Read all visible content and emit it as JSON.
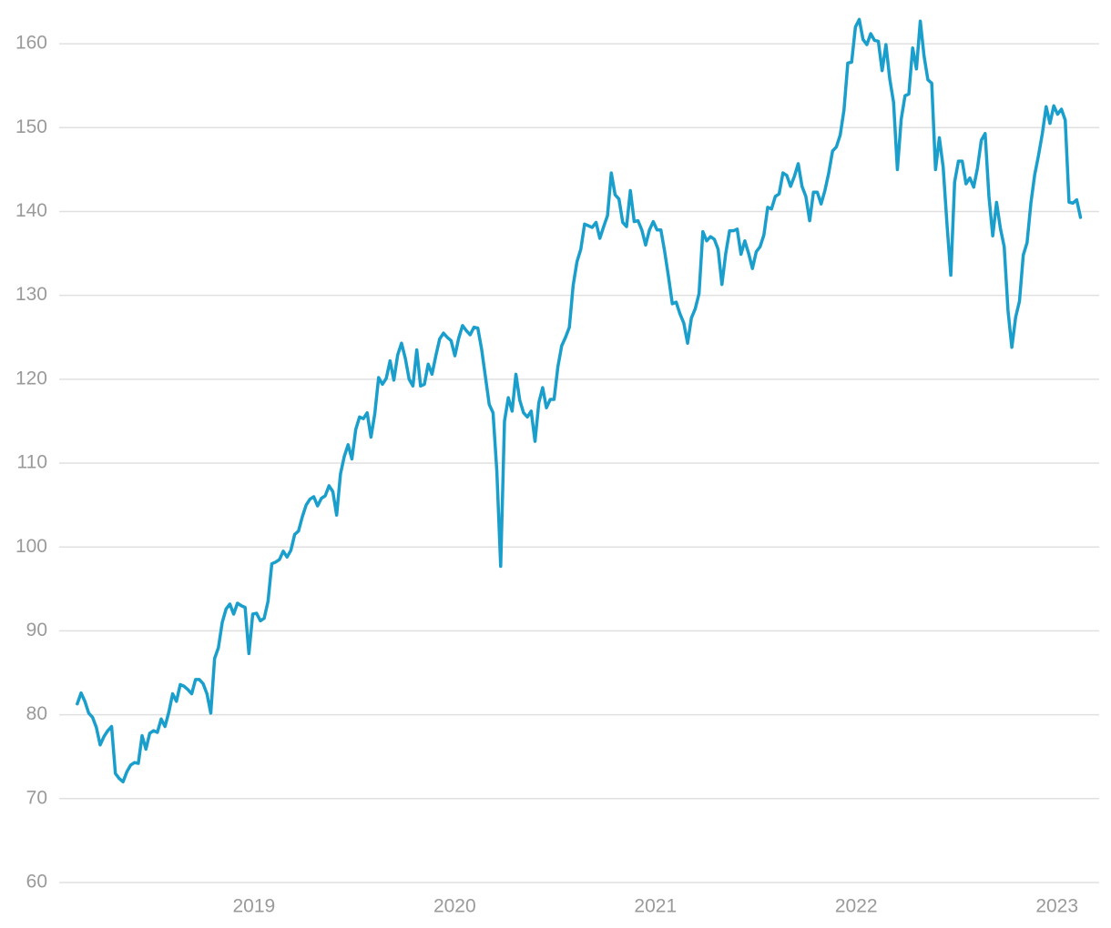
{
  "chart_data": {
    "type": "line",
    "color": "#1a9fcc",
    "grid": true,
    "xlim": [
      2018.03,
      2023.21
    ],
    "xticks": [
      2019,
      2020,
      2021,
      2022,
      2023
    ],
    "ylim": [
      60,
      165
    ],
    "yticks": [
      60,
      70,
      80,
      90,
      100,
      110,
      120,
      130,
      140,
      150,
      160
    ],
    "x": [
      2018.12,
      2018.139,
      2018.158,
      2018.177,
      2018.196,
      2018.215,
      2018.234,
      2018.253,
      2018.272,
      2018.291,
      2018.31,
      2018.329,
      2018.348,
      2018.367,
      2018.386,
      2018.405,
      2018.424,
      2018.443,
      2018.462,
      2018.481,
      2018.5,
      2018.519,
      2018.538,
      2018.557,
      2018.576,
      2018.595,
      2018.614,
      2018.633,
      2018.652,
      2018.671,
      2018.69,
      2018.709,
      2018.728,
      2018.747,
      2018.766,
      2018.785,
      2018.804,
      2018.823,
      2018.842,
      2018.861,
      2018.88,
      2018.899,
      2018.918,
      2018.937,
      2018.956,
      2018.975,
      2018.994,
      2019.013,
      2019.032,
      2019.051,
      2019.07,
      2019.089,
      2019.108,
      2019.127,
      2019.146,
      2019.165,
      2019.184,
      2019.203,
      2019.222,
      2019.241,
      2019.26,
      2019.279,
      2019.298,
      2019.317,
      2019.336,
      2019.355,
      2019.374,
      2019.393,
      2019.412,
      2019.431,
      2019.45,
      2019.469,
      2019.488,
      2019.507,
      2019.526,
      2019.545,
      2019.564,
      2019.583,
      2019.602,
      2019.621,
      2019.64,
      2019.659,
      2019.678,
      2019.697,
      2019.716,
      2019.735,
      2019.754,
      2019.773,
      2019.792,
      2019.811,
      2019.83,
      2019.849,
      2019.868,
      2019.887,
      2019.906,
      2019.925,
      2019.944,
      2019.963,
      2019.982,
      2020.001,
      2020.02,
      2020.039,
      2020.058,
      2020.077,
      2020.096,
      2020.115,
      2020.134,
      2020.153,
      2020.172,
      2020.191,
      2020.21,
      2020.229,
      2020.248,
      2020.267,
      2020.286,
      2020.305,
      2020.324,
      2020.343,
      2020.362,
      2020.381,
      2020.4,
      2020.419,
      2020.438,
      2020.457,
      2020.476,
      2020.495,
      2020.514,
      2020.533,
      2020.552,
      2020.571,
      2020.59,
      2020.609,
      2020.628,
      2020.647,
      2020.666,
      2020.685,
      2020.704,
      2020.723,
      2020.742,
      2020.761,
      2020.78,
      2020.799,
      2020.818,
      2020.837,
      2020.856,
      2020.875,
      2020.894,
      2020.913,
      2020.932,
      2020.951,
      2020.97,
      2020.989,
      2021.008,
      2021.027,
      2021.046,
      2021.065,
      2021.084,
      2021.103,
      2021.122,
      2021.141,
      2021.16,
      2021.179,
      2021.198,
      2021.217,
      2021.236,
      2021.255,
      2021.274,
      2021.293,
      2021.312,
      2021.331,
      2021.35,
      2021.369,
      2021.388,
      2021.407,
      2021.426,
      2021.445,
      2021.464,
      2021.483,
      2021.502,
      2021.521,
      2021.54,
      2021.559,
      2021.578,
      2021.597,
      2021.616,
      2021.635,
      2021.654,
      2021.673,
      2021.692,
      2021.711,
      2021.73,
      2021.749,
      2021.768,
      2021.787,
      2021.806,
      2021.825,
      2021.844,
      2021.863,
      2021.882,
      2021.901,
      2021.92,
      2021.939,
      2021.958,
      2021.977,
      2021.996,
      2022.015,
      2022.034,
      2022.053,
      2022.072,
      2022.091,
      2022.11,
      2022.129,
      2022.148,
      2022.167,
      2022.186,
      2022.205,
      2022.224,
      2022.243,
      2022.262,
      2022.281,
      2022.3,
      2022.319,
      2022.338,
      2022.357,
      2022.376,
      2022.395,
      2022.414,
      2022.433,
      2022.452,
      2022.471,
      2022.49,
      2022.509,
      2022.528,
      2022.547,
      2022.566,
      2022.585,
      2022.604,
      2022.623,
      2022.642,
      2022.661,
      2022.68,
      2022.699,
      2022.718,
      2022.737,
      2022.756,
      2022.775,
      2022.794,
      2022.813,
      2022.832,
      2022.851,
      2022.87,
      2022.889,
      2022.908,
      2022.927,
      2022.946,
      2022.965,
      2022.984,
      2023.003,
      2023.022,
      2023.041,
      2023.06,
      2023.079,
      2023.098,
      2023.117
    ],
    "values": [
      81.3,
      82.6,
      81.6,
      80.2,
      79.7,
      78.5,
      76.4,
      77.4,
      78.1,
      78.6,
      73.0,
      72.4,
      72.0,
      73.2,
      74.0,
      74.3,
      74.2,
      77.5,
      75.9,
      77.8,
      78.1,
      77.9,
      79.5,
      78.6,
      80.3,
      82.5,
      81.6,
      83.6,
      83.4,
      83.0,
      82.5,
      84.2,
      84.2,
      83.7,
      82.5,
      80.2,
      86.7,
      88.0,
      91.0,
      92.6,
      93.2,
      92.0,
      93.3,
      93.0,
      92.8,
      87.3,
      92.0,
      92.1,
      91.2,
      91.5,
      93.5,
      98.0,
      98.2,
      98.5,
      99.5,
      98.8,
      99.6,
      101.5,
      101.9,
      103.6,
      105.0,
      105.7,
      106.0,
      104.9,
      105.8,
      106.1,
      107.3,
      106.6,
      103.8,
      108.7,
      110.8,
      112.2,
      110.5,
      114.0,
      115.5,
      115.3,
      116.0,
      113.1,
      115.9,
      120.2,
      119.4,
      120.1,
      122.2,
      119.9,
      122.9,
      124.3,
      122.5,
      120.0,
      119.2,
      123.5,
      119.2,
      119.4,
      121.8,
      120.6,
      122.8,
      124.8,
      125.5,
      125.0,
      124.6,
      122.8,
      124.9,
      126.4,
      125.8,
      125.3,
      126.2,
      126.1,
      123.6,
      120.3,
      117.0,
      116.0,
      109.0,
      97.7,
      115.0,
      117.8,
      116.2,
      120.6,
      117.5,
      116.0,
      115.5,
      116.2,
      112.6,
      117.2,
      119.0,
      116.6,
      117.6,
      117.6,
      121.5,
      124.0,
      125.0,
      126.2,
      131.2,
      134.0,
      135.5,
      138.5,
      138.3,
      138.1,
      138.7,
      136.8,
      138.2,
      139.5,
      144.6,
      142.0,
      141.5,
      138.7,
      138.2,
      142.5,
      138.8,
      138.9,
      137.8,
      136.0,
      137.8,
      138.8,
      137.8,
      137.8,
      135.2,
      132.2,
      129.0,
      129.2,
      127.8,
      126.7,
      124.3,
      127.3,
      128.4,
      130.2,
      137.6,
      136.5,
      137.0,
      136.7,
      135.5,
      131.3,
      135.0,
      137.7,
      137.7,
      137.9,
      134.9,
      136.5,
      135.0,
      133.2,
      135.2,
      135.8,
      137.2,
      140.5,
      140.3,
      141.8,
      142.1,
      144.6,
      144.3,
      143.0,
      144.2,
      145.7,
      143.0,
      141.8,
      138.9,
      142.3,
      142.3,
      140.9,
      142.5,
      144.6,
      147.2,
      147.7,
      149.1,
      152.1,
      157.7,
      157.8,
      162.0,
      162.9,
      160.5,
      159.9,
      161.2,
      160.4,
      160.3,
      156.8,
      159.9,
      155.8,
      153.0,
      145.0,
      151.0,
      153.8,
      154.0,
      159.5,
      157.0,
      162.7,
      158.5,
      155.7,
      155.3,
      145.0,
      148.8,
      145.3,
      138.5,
      132.4,
      143.5,
      146.0,
      146.0,
      143.3,
      144.0,
      142.9,
      145.2,
      148.5,
      149.3,
      141.8,
      137.1,
      141.1,
      138.0,
      135.8,
      128.2,
      123.8,
      127.4,
      129.3,
      134.8,
      136.3,
      141.0,
      144.4,
      146.7,
      149.3,
      152.5,
      150.5,
      152.6,
      151.6,
      152.2,
      150.9,
      141.1,
      141.0,
      141.4,
      139.3
    ]
  }
}
